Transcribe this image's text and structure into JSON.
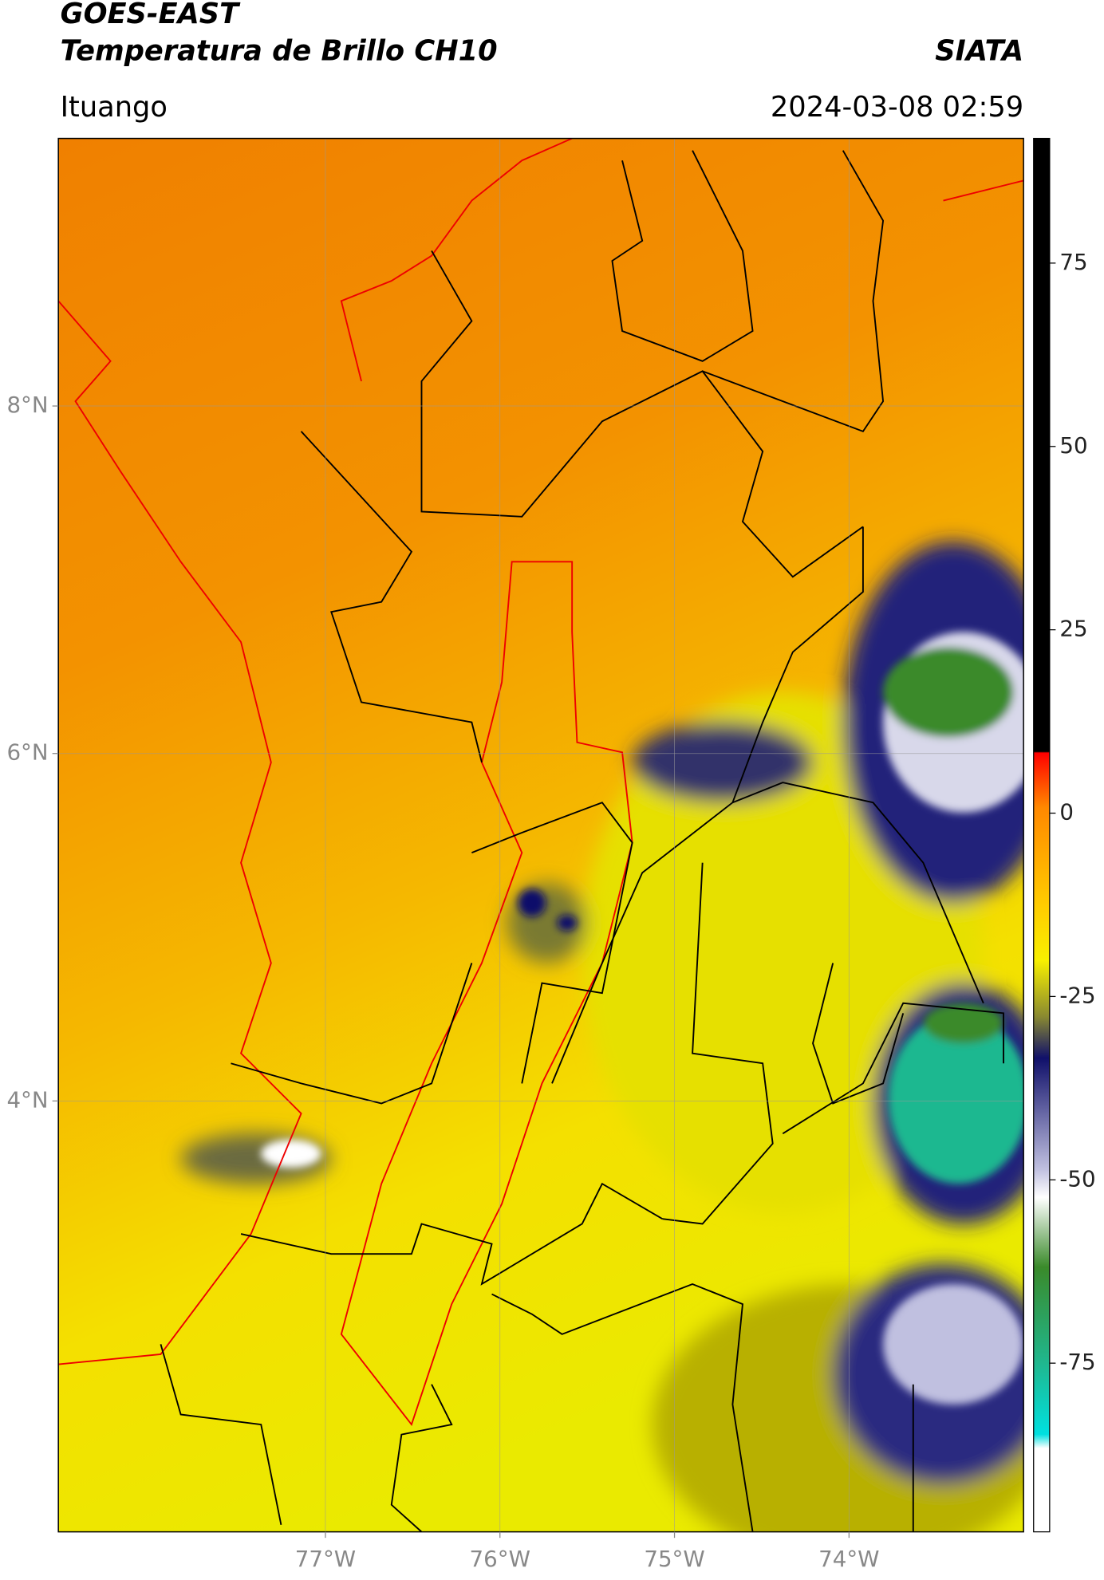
{
  "header": {
    "title": "GOES-EAST",
    "subtitle": "Temperatura de Brillo CH10",
    "source": "SIATA",
    "location": "Ituango",
    "datetime": "2024-03-08 02:59"
  },
  "map": {
    "xlim": [
      -78.53,
      -73.0
    ],
    "ylim": [
      1.52,
      9.54
    ],
    "xticks": [
      {
        "value": -77,
        "label": "77°W"
      },
      {
        "value": -76,
        "label": "76°W"
      },
      {
        "value": -75,
        "label": "75°W"
      },
      {
        "value": -74,
        "label": "74°W"
      }
    ],
    "yticks": [
      {
        "value": 8,
        "label": "8°N"
      },
      {
        "value": 6,
        "label": "6°N"
      },
      {
        "value": 4,
        "label": "4°N"
      }
    ],
    "grid": true
  },
  "colorbar": {
    "lim": [
      -98,
      92
    ],
    "ticks": [
      75,
      50,
      25,
      0,
      -25,
      -50,
      -75
    ]
  }
}
